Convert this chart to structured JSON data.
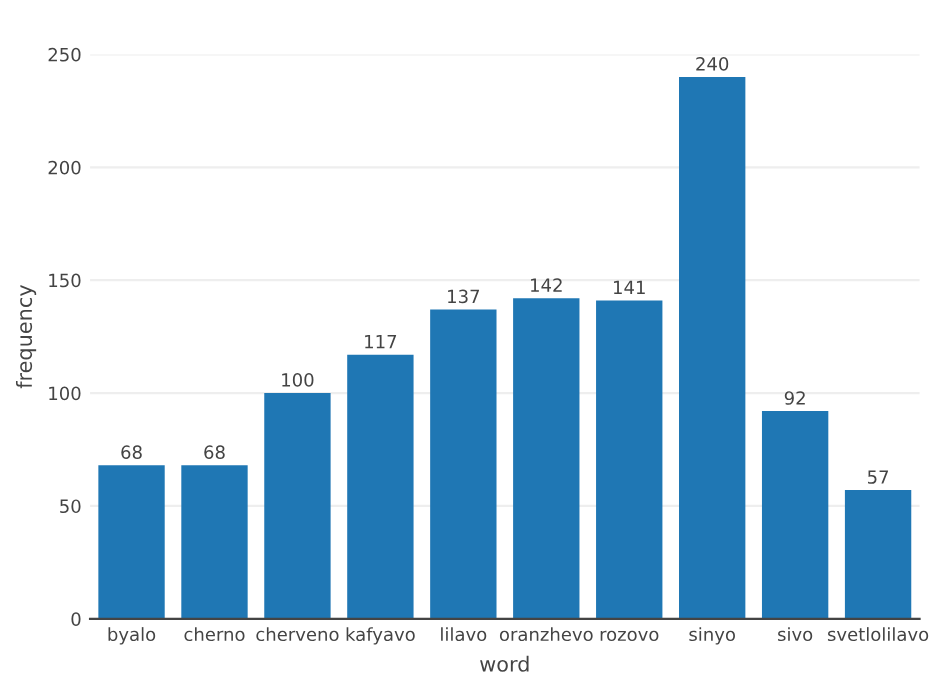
{
  "chart_data": {
    "type": "bar",
    "xlabel": "word",
    "ylabel": "frequency",
    "categories": [
      "byalo",
      "cherno",
      "cherveno",
      "kafyavo",
      "lilavo",
      "oranzhevo",
      "rozovo",
      "sinyo",
      "sivo",
      "svetlolilavo"
    ],
    "values": [
      68,
      68,
      100,
      117,
      137,
      142,
      141,
      240,
      92,
      57
    ],
    "color": "#1f77b4",
    "data_labels": true,
    "ylim": [
      0,
      250
    ],
    "yticks": [
      0,
      50,
      100,
      150,
      200,
      250
    ],
    "grid": "y"
  }
}
